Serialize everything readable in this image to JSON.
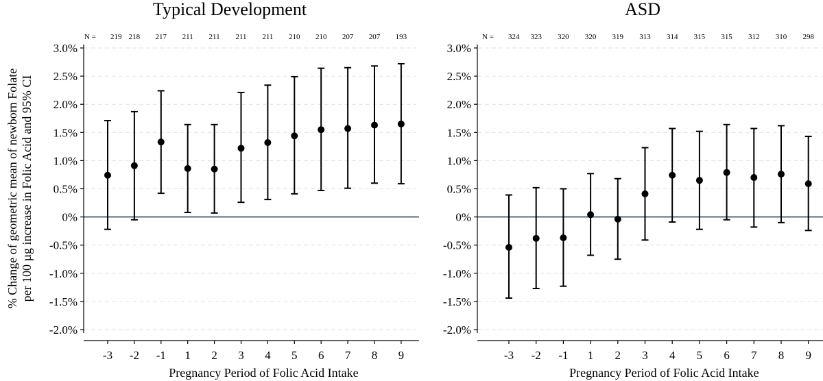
{
  "chart_data": [
    {
      "type": "errorbar",
      "title": "Typical Development",
      "xlabel": "Pregnancy Period of Folic Acid Intake",
      "ylabel_lines": [
        "% Change of geometric mean of newborn Folate",
        "per 100 µg increase in Folic Acid and 95% CI"
      ],
      "ylim": [
        -2.0,
        3.0
      ],
      "grid": true,
      "categories": [
        "-3",
        "-2",
        "-1",
        "1",
        "2",
        "3",
        "4",
        "5",
        "6",
        "7",
        "8",
        "9"
      ],
      "n_label": "N =",
      "n_values": [
        "219",
        "218",
        "217",
        "211",
        "211",
        "211",
        "211",
        "210",
        "210",
        "207",
        "207",
        "193"
      ],
      "estimates": [
        0.74,
        0.91,
        1.33,
        0.86,
        0.85,
        1.22,
        1.32,
        1.44,
        1.55,
        1.57,
        1.63,
        1.65
      ],
      "lower": [
        -0.22,
        -0.05,
        0.42,
        0.08,
        0.07,
        0.26,
        0.31,
        0.41,
        0.47,
        0.51,
        0.6,
        0.59
      ],
      "upper": [
        1.71,
        1.87,
        2.24,
        1.64,
        1.64,
        2.21,
        2.34,
        2.49,
        2.64,
        2.65,
        2.68,
        2.72
      ],
      "yticks": [
        3.0,
        2.5,
        2.0,
        1.5,
        1.0,
        0.5,
        0.0,
        -0.5,
        -1.0,
        -1.5,
        -2.0
      ],
      "ytick_labels": [
        "3.0%",
        "2.5%",
        "2.0%",
        "1.5%",
        "1.0%",
        "0.5%",
        "0%",
        "-0.5%",
        "-1.0%",
        "-1.5%",
        "-2.0%"
      ],
      "reference_line": 0
    },
    {
      "type": "errorbar",
      "title": "ASD",
      "xlabel": "Pregnancy Period of Folic Acid Intake",
      "ylim": [
        -2.0,
        3.0
      ],
      "grid": true,
      "categories": [
        "-3",
        "-2",
        "-1",
        "1",
        "2",
        "3",
        "4",
        "5",
        "6",
        "7",
        "8",
        "9"
      ],
      "n_label": "N =",
      "n_values": [
        "324",
        "323",
        "320",
        "320",
        "319",
        "313",
        "314",
        "315",
        "315",
        "312",
        "310",
        "298"
      ],
      "estimates": [
        -0.54,
        -0.38,
        -0.37,
        0.04,
        -0.04,
        0.41,
        0.74,
        0.65,
        0.79,
        0.7,
        0.76,
        0.59
      ],
      "lower": [
        -1.44,
        -1.27,
        -1.23,
        -0.68,
        -0.75,
        -0.41,
        -0.09,
        -0.22,
        -0.05,
        -0.18,
        -0.1,
        -0.24
      ],
      "upper": [
        0.39,
        0.52,
        0.5,
        0.77,
        0.68,
        1.23,
        1.57,
        1.52,
        1.64,
        1.57,
        1.62,
        1.43
      ],
      "yticks": [
        3.0,
        2.5,
        2.0,
        1.5,
        1.0,
        0.5,
        0.0,
        -0.5,
        -1.0,
        -1.5,
        -2.0
      ],
      "ytick_labels": [
        "3.0%",
        "2.5%",
        "2.0%",
        "1.5%",
        "1.0%",
        "0.5%",
        "0%",
        "-0.5%",
        "-1.0%",
        "-1.5%",
        "-2.0%"
      ],
      "reference_line": 0
    }
  ],
  "colors": {
    "point": "#000000",
    "reference": "#2b4a63",
    "grid": "#e1e1e1",
    "axis": "#000000"
  }
}
